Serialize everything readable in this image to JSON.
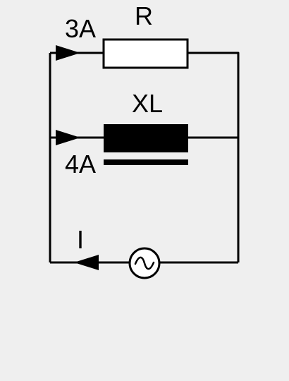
{
  "diagram": {
    "type": "circuit",
    "labels": {
      "resistor": "R",
      "inductor": "XL",
      "resistor_current": "3A",
      "inductor_current": "4A",
      "source_current": "I"
    },
    "colors": {
      "background": "#efefef",
      "wire": "#000000",
      "resistor_fill": "#ffffff",
      "inductor_fill": "#000000"
    },
    "icons": {
      "arrow": "triangle-arrow",
      "source": "ac-source-sine"
    }
  }
}
